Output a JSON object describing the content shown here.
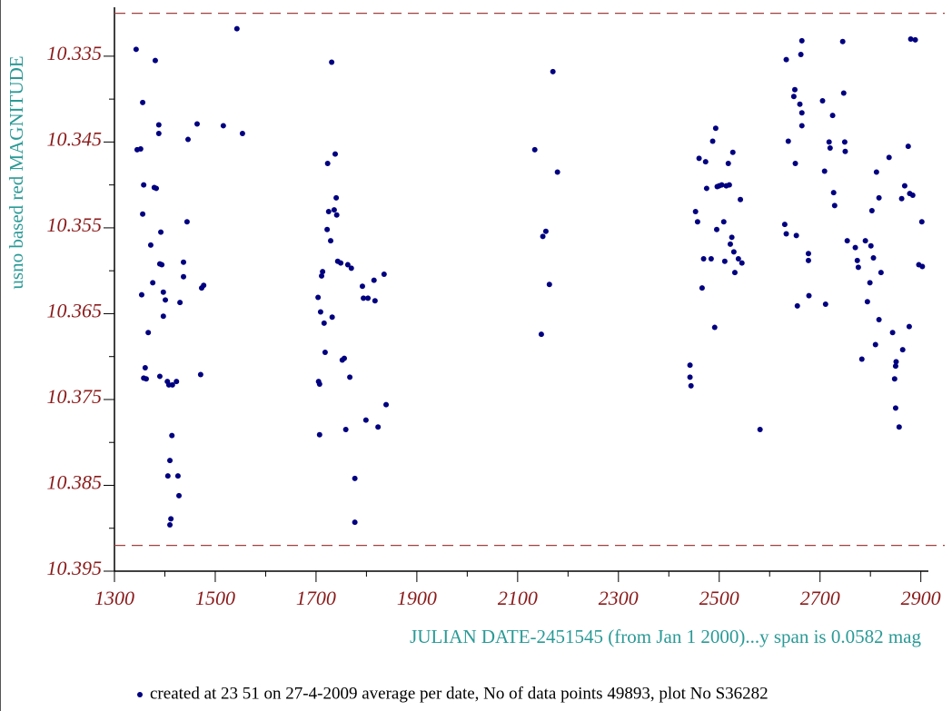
{
  "chart_data": {
    "type": "scatter",
    "ylabel": "usno based red MAGNITUDE",
    "xlabel": "JULIAN DATE-2451545 (from Jan 1 2000)...y span is 0.0582 mag",
    "note": "created at 23 51 on 27-4-2009 average per date, No of data points 49893,  plot No S36282",
    "color": "#000080",
    "reference_lines": [
      10.33,
      10.392
    ],
    "reference_color": "#a04040",
    "xlim": [
      1300,
      2915
    ],
    "ylim": [
      10.395,
      10.3293
    ],
    "xticks": [
      1300,
      1500,
      1700,
      1900,
      2100,
      2300,
      2500,
      2700,
      2900
    ],
    "yticks": [
      10.335,
      10.345,
      10.355,
      10.365,
      10.375,
      10.385,
      10.395
    ],
    "x": [
      1343,
      1345,
      1352,
      1354,
      1356,
      1356,
      1358,
      1358,
      1361,
      1363,
      1367,
      1372,
      1376,
      1379,
      1381,
      1383,
      1388,
      1388,
      1390,
      1390,
      1392,
      1394,
      1397,
      1397,
      1401,
      1405,
      1406,
      1408,
      1410,
      1412,
      1410,
      1414,
      1415,
      1423,
      1426,
      1428,
      1430,
      1437,
      1437,
      1444,
      1446,
      1464,
      1471,
      1473,
      1477,
      1516,
      1543,
      1554,
      1704,
      1705,
      1707,
      1707,
      1709,
      1711,
      1713,
      1716,
      1718,
      1722,
      1723,
      1725,
      1729,
      1731,
      1732,
      1736,
      1738,
      1740,
      1741,
      1743,
      1749,
      1752,
      1756,
      1759,
      1763,
      1767,
      1770,
      1777,
      1777,
      1792,
      1794,
      1799,
      1803,
      1815,
      1817,
      1823,
      1835,
      1839,
      2134,
      2147,
      2150,
      2156,
      2163,
      2170,
      2179,
      2442,
      2442,
      2444,
      2453,
      2457,
      2460,
      2466,
      2469,
      2473,
      2475,
      2484,
      2487,
      2491,
      2493,
      2495,
      2496,
      2500,
      2505,
      2509,
      2511,
      2514,
      2518,
      2520,
      2522,
      2525,
      2527,
      2529,
      2531,
      2538,
      2542,
      2545,
      2581,
      2630,
      2633,
      2633,
      2637,
      2648,
      2650,
      2651,
      2653,
      2655,
      2660,
      2662,
      2664,
      2664,
      2664,
      2677,
      2677,
      2678,
      2705,
      2709,
      2711,
      2718,
      2720,
      2725,
      2727,
      2729,
      2745,
      2747,
      2749,
      2750,
      2754,
      2770,
      2774,
      2776,
      2783,
      2790,
      2794,
      2799,
      2801,
      2803,
      2806,
      2810,
      2812,
      2817,
      2817,
      2821,
      2837,
      2844,
      2848,
      2850,
      2851,
      2850,
      2857,
      2862,
      2864,
      2868,
      2875,
      2877,
      2878,
      2880,
      2884,
      2889,
      2896,
      2902,
      2903
    ],
    "y": [
      10.3342,
      10.3459,
      10.3458,
      10.3628,
      10.3534,
      10.3404,
      10.35,
      10.3725,
      10.3713,
      10.3726,
      10.3672,
      10.357,
      10.3614,
      10.3503,
      10.3355,
      10.3504,
      10.343,
      10.344,
      10.3592,
      10.3723,
      10.3555,
      10.3593,
      10.3653,
      10.3625,
      10.3634,
      10.3729,
      10.3839,
      10.3733,
      10.3896,
      10.3889,
      10.3821,
      10.3792,
      10.3733,
      10.3729,
      10.3839,
      10.3862,
      10.3637,
      10.359,
      10.3607,
      10.3543,
      10.3447,
      10.3429,
      10.3721,
      10.362,
      10.3617,
      10.3431,
      10.3318,
      10.344,
      10.3631,
      10.3729,
      10.3732,
      10.3791,
      10.3648,
      10.3606,
      10.3601,
      10.3661,
      10.3695,
      10.3552,
      10.3475,
      10.3531,
      10.3565,
      10.3357,
      10.3654,
      10.3529,
      10.3464,
      10.3515,
      10.3535,
      10.3589,
      10.3591,
      10.3704,
      10.3702,
      10.3785,
      10.3593,
      10.3724,
      10.3597,
      10.3842,
      10.3893,
      10.3618,
      10.3632,
      10.3774,
      10.3632,
      10.3611,
      10.3635,
      10.3782,
      10.3604,
      10.3756,
      10.3459,
      10.3674,
      10.356,
      10.3554,
      10.3616,
      10.3368,
      10.3485,
      10.371,
      10.3724,
      10.3734,
      10.3531,
      10.3543,
      10.3469,
      10.362,
      10.3586,
      10.3473,
      10.3504,
      10.3586,
      10.3449,
      10.3666,
      10.3434,
      10.3552,
      10.3502,
      10.3501,
      10.35,
      10.3543,
      10.3589,
      10.3501,
      10.3475,
      10.35,
      10.3569,
      10.3561,
      10.3462,
      10.3578,
      10.3602,
      10.3586,
      10.3517,
      10.3591,
      10.3785,
      10.3546,
      10.3557,
      10.3354,
      10.3449,
      10.3397,
      10.3389,
      10.3475,
      10.3559,
      10.3641,
      10.3406,
      10.3348,
      10.3332,
      10.3416,
      10.3431,
      10.358,
      10.3588,
      10.3629,
      10.3402,
      10.3484,
      10.3639,
      10.345,
      10.3457,
      10.3419,
      10.3509,
      10.3524,
      10.3333,
      10.3393,
      10.345,
      10.3461,
      10.3565,
      10.3573,
      10.3588,
      10.3596,
      10.3703,
      10.3565,
      10.3636,
      10.3614,
      10.3571,
      10.353,
      10.3585,
      10.3686,
      10.3485,
      10.3657,
      10.3515,
      10.3602,
      10.3468,
      10.3672,
      10.3726,
      10.3711,
      10.3706,
      10.376,
      10.3782,
      10.3516,
      10.3692,
      10.3501,
      10.3455,
      10.3665,
      10.351,
      10.333,
      10.3512,
      10.3331,
      10.3593,
      10.3543,
      10.3595
    ]
  }
}
